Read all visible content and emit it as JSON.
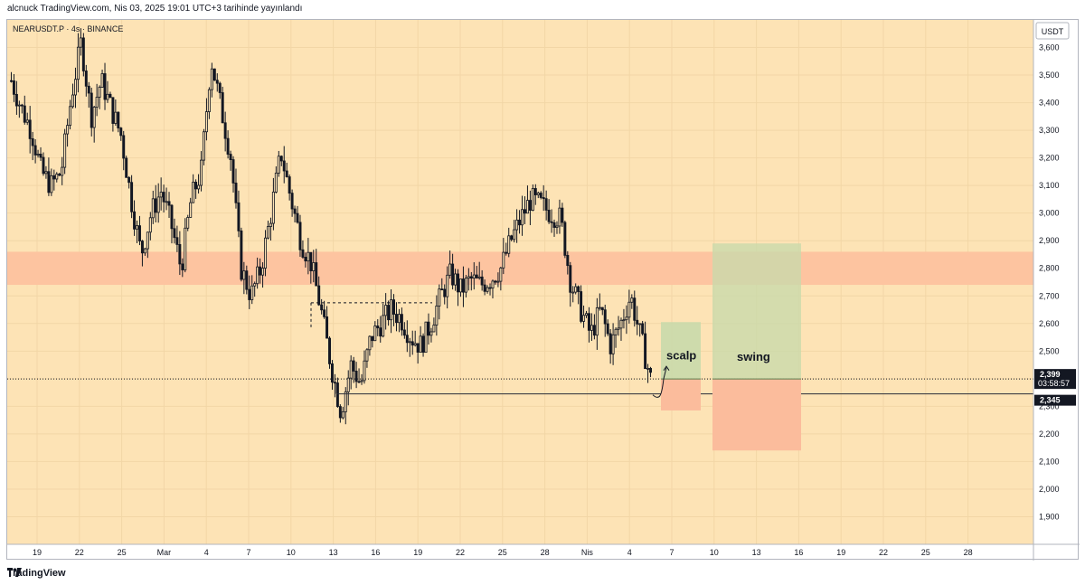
{
  "header": {
    "text": "alcnuck TradingView.com, Nis 03, 2025 19:01 UTC+3 tarihinde yayınlandı"
  },
  "chart": {
    "symbol": "NEARUSDT.P · 4s · BINANCE",
    "currency": "USDT",
    "last_price_label": "2,399",
    "countdown_label": "03:58:57",
    "level_label": "2,345"
  },
  "annotations": {
    "scalp": "scalp",
    "swing": "swing"
  },
  "footer": {
    "brand": "TradingView"
  },
  "colors": {
    "background": "#fde3b5",
    "resistance_zone": "#fdc4a0",
    "profit_zone": "#c9d9ab",
    "loss_zone": "#fbbc9c",
    "candle": "#131722"
  },
  "chart_data": {
    "type": "candlestick",
    "ylim": [
      1800,
      3700
    ],
    "y_ticks": [
      "1,900",
      "2,000",
      "2,100",
      "2,200",
      "2,300",
      "2,400",
      "2,500",
      "2,600",
      "2,700",
      "2,800",
      "2,900",
      "3,000",
      "3,100",
      "3,200",
      "3,300",
      "3,400",
      "3,500",
      "3,600"
    ],
    "x_ticks": [
      "19",
      "22",
      "25",
      "Mar",
      "4",
      "7",
      "10",
      "13",
      "16",
      "19",
      "22",
      "25",
      "28",
      "Nis",
      "4",
      "7",
      "10",
      "13",
      "16",
      "19",
      "22",
      "25",
      "28"
    ],
    "resistance_zone": [
      2740,
      2860
    ],
    "dashed_level": 2675,
    "support_level": 2345,
    "current_price": 2399,
    "price_path": [
      [
        3480,
        "19"
      ],
      [
        3380,
        "19"
      ],
      [
        3300,
        "19"
      ],
      [
        3150,
        "19"
      ],
      [
        3100,
        "19"
      ],
      [
        3150,
        "22"
      ],
      [
        3420,
        "22"
      ],
      [
        3620,
        "22"
      ],
      [
        3350,
        "22"
      ],
      [
        3480,
        "22"
      ],
      [
        3380,
        "25"
      ],
      [
        3280,
        "25"
      ],
      [
        3050,
        "25"
      ],
      [
        2850,
        "25"
      ],
      [
        3000,
        "25"
      ],
      [
        3080,
        "Mar"
      ],
      [
        2960,
        "Mar"
      ],
      [
        2800,
        "Mar"
      ],
      [
        3050,
        "Mar"
      ],
      [
        3150,
        "Mar"
      ],
      [
        3560,
        "4"
      ],
      [
        3380,
        "4"
      ],
      [
        3200,
        "4"
      ],
      [
        2800,
        "4"
      ],
      [
        2700,
        "4"
      ],
      [
        2800,
        "7"
      ],
      [
        3000,
        "7"
      ],
      [
        3220,
        "7"
      ],
      [
        3050,
        "7"
      ],
      [
        2900,
        "7"
      ],
      [
        2820,
        "10"
      ],
      [
        2650,
        "10"
      ],
      [
        2450,
        "10"
      ],
      [
        2280,
        "10"
      ],
      [
        2450,
        "10"
      ],
      [
        2380,
        "13"
      ],
      [
        2550,
        "13"
      ],
      [
        2600,
        "13"
      ],
      [
        2650,
        "13"
      ],
      [
        2620,
        "16"
      ],
      [
        2550,
        "16"
      ],
      [
        2520,
        "16"
      ],
      [
        2600,
        "19"
      ],
      [
        2700,
        "19"
      ],
      [
        2780,
        "19"
      ],
      [
        2720,
        "19"
      ],
      [
        2760,
        "22"
      ],
      [
        2740,
        "22"
      ],
      [
        2760,
        "22"
      ],
      [
        2800,
        "22"
      ],
      [
        2900,
        "25"
      ],
      [
        2980,
        "25"
      ],
      [
        3050,
        "25"
      ],
      [
        3030,
        "28"
      ],
      [
        3000,
        "28"
      ],
      [
        2980,
        "28"
      ],
      [
        2750,
        "28"
      ],
      [
        2650,
        "28"
      ],
      [
        2560,
        "Nis"
      ],
      [
        2650,
        "Nis"
      ],
      [
        2520,
        "Nis"
      ],
      [
        2600,
        "Nis"
      ],
      [
        2700,
        "Nis"
      ],
      [
        2550,
        "4"
      ],
      [
        2400,
        "4"
      ]
    ],
    "trade_setups": [
      {
        "label": "scalp",
        "entry": 2399,
        "target": 2605,
        "stop": 2285
      },
      {
        "label": "swing",
        "entry": 2399,
        "target": 2890,
        "stop": 2140
      }
    ]
  }
}
